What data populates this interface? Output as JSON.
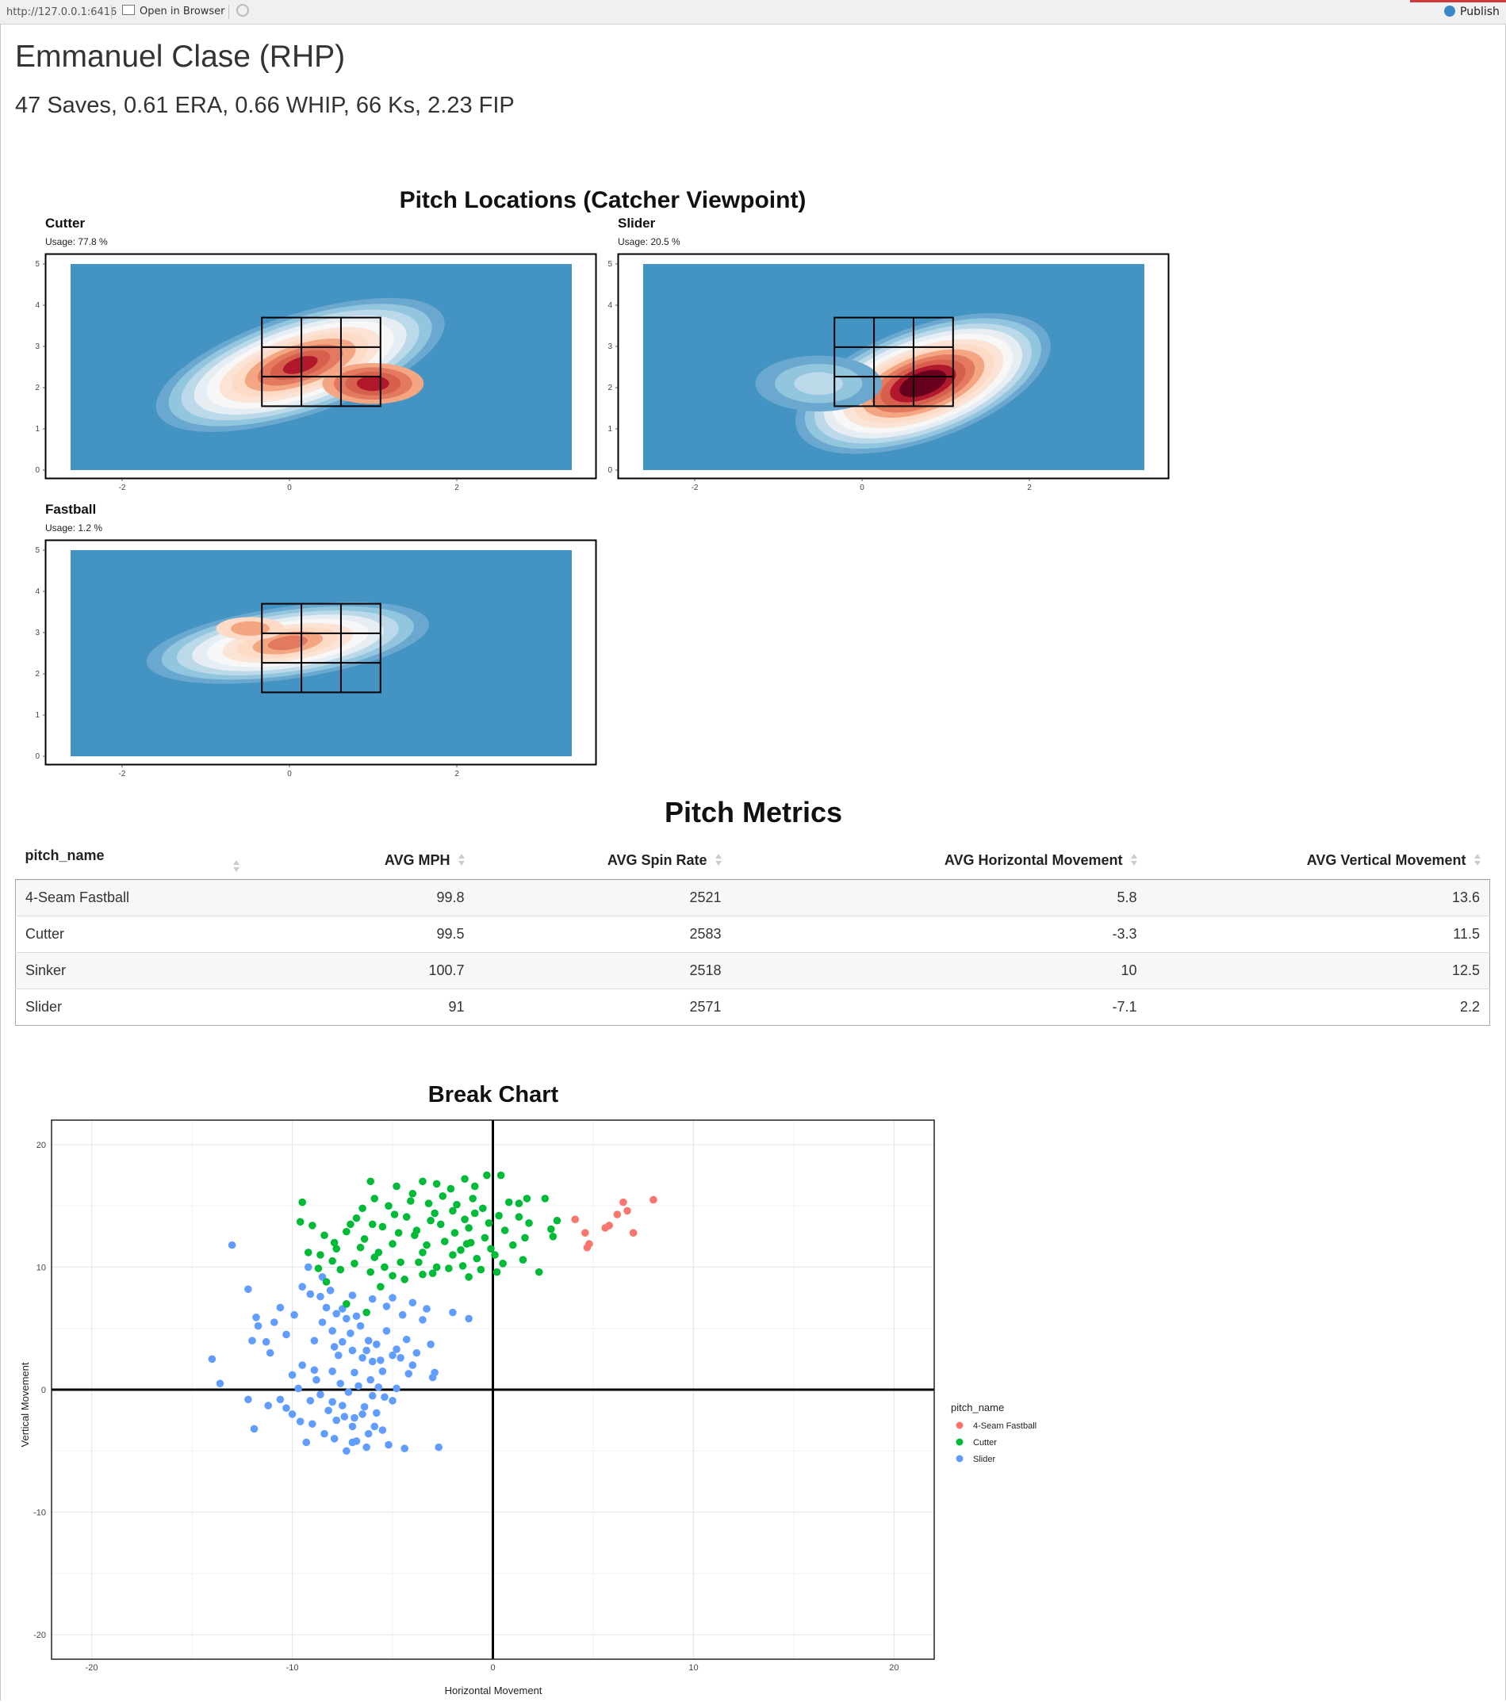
{
  "topbar": {
    "url": "http://127.0.0.1:6416",
    "open_in_browser": "Open in Browser",
    "publish": "Publish"
  },
  "header": {
    "title": "Emmanuel Clase (RHP)",
    "stats": "47 Saves, 0.61 ERA, 0.66 WHIP, 66 Ks, 2.23 FIP"
  },
  "locations": {
    "title": "Pitch Locations (Catcher Viewpoint)",
    "panels": [
      {
        "name": "Cutter",
        "usage": "Usage: 77.8 %"
      },
      {
        "name": "Slider",
        "usage": "Usage: 20.5 %"
      },
      {
        "name": "Fastball",
        "usage": "Usage: 1.2 %"
      }
    ],
    "x_ticks": [
      "-2",
      "0",
      "2"
    ],
    "y_ticks": [
      "0",
      "1",
      "2",
      "3",
      "4",
      "5"
    ],
    "fill_low": "#4393c3",
    "fill_high": "#67001f"
  },
  "metrics": {
    "title": "Pitch Metrics",
    "columns": [
      "pitch_name",
      "AVG MPH",
      "AVG Spin Rate",
      "AVG Horizontal Movement",
      "AVG Vertical Movement"
    ],
    "rows": [
      [
        "4-Seam Fastball",
        "99.8",
        "2521",
        "5.8",
        "13.6"
      ],
      [
        "Cutter",
        "99.5",
        "2583",
        "-3.3",
        "11.5"
      ],
      [
        "Sinker",
        "100.7",
        "2518",
        "10",
        "12.5"
      ],
      [
        "Slider",
        "91",
        "2571",
        "-7.1",
        "2.2"
      ]
    ]
  },
  "chart_data": {
    "type": "scatter",
    "title": "Break Chart",
    "xlabel": "Horizontal Movement",
    "ylabel": "Vertical Movement",
    "xlim": [
      -22,
      22
    ],
    "ylim": [
      -22,
      22
    ],
    "x_ticks": [
      -20,
      -10,
      0,
      10,
      20
    ],
    "y_ticks": [
      -20,
      -10,
      0,
      10,
      20
    ],
    "grid": true,
    "legend_title": "pitch_name",
    "legend_position": "right",
    "series": [
      {
        "name": "4-Seam Fastball",
        "color": "#f8766d",
        "points": [
          [
            4.1,
            13.9
          ],
          [
            4.6,
            12.8
          ],
          [
            4.8,
            11.9
          ],
          [
            4.7,
            11.6
          ],
          [
            5.6,
            13.2
          ],
          [
            5.8,
            13.4
          ],
          [
            6.2,
            14.3
          ],
          [
            6.5,
            15.3
          ],
          [
            6.7,
            14.6
          ],
          [
            7.0,
            12.8
          ],
          [
            8.0,
            15.5
          ]
        ]
      },
      {
        "name": "Cutter",
        "color": "#00ba38",
        "points": [
          [
            -9.5,
            15.3
          ],
          [
            -9.6,
            13.7
          ],
          [
            -6.1,
            17.0
          ],
          [
            -5.9,
            15.6
          ],
          [
            -4.8,
            16.6
          ],
          [
            -4.0,
            16.0
          ],
          [
            -3.5,
            17.0
          ],
          [
            -2.8,
            16.8
          ],
          [
            -2.1,
            16.4
          ],
          [
            -1.4,
            17.2
          ],
          [
            -0.9,
            16.6
          ],
          [
            -0.3,
            17.5
          ],
          [
            0.4,
            17.5
          ],
          [
            0.8,
            15.3
          ],
          [
            1.3,
            15.2
          ],
          [
            1.7,
            15.6
          ],
          [
            2.6,
            15.6
          ],
          [
            3.2,
            13.8
          ],
          [
            2.9,
            13.1
          ],
          [
            3.0,
            12.5
          ],
          [
            1.8,
            13.6
          ],
          [
            1.6,
            12.4
          ],
          [
            1.3,
            14.1
          ],
          [
            2.3,
            9.6
          ],
          [
            0.2,
            9.6
          ],
          [
            -1.2,
            9.2
          ],
          [
            -7.3,
            7.0
          ],
          [
            -6.3,
            6.3
          ],
          [
            -3.5,
            9.4
          ],
          [
            -5.6,
            8.4
          ],
          [
            -8.3,
            8.8
          ],
          [
            -8.7,
            9.9
          ],
          [
            -9.2,
            11.2
          ],
          [
            -9.0,
            13.4
          ],
          [
            -8.4,
            12.6
          ],
          [
            -7.8,
            11.5
          ],
          [
            -7.3,
            12.9
          ],
          [
            -6.8,
            14.0
          ],
          [
            -6.4,
            12.3
          ],
          [
            -5.9,
            10.8
          ],
          [
            -5.5,
            13.3
          ],
          [
            -5.0,
            11.9
          ],
          [
            -4.6,
            10.4
          ],
          [
            -4.3,
            14.1
          ],
          [
            -3.9,
            12.6
          ],
          [
            -3.5,
            11.2
          ],
          [
            -3.1,
            13.8
          ],
          [
            -2.8,
            10.0
          ],
          [
            -2.4,
            12.1
          ],
          [
            -2.0,
            14.6
          ],
          [
            -1.6,
            11.4
          ],
          [
            -1.2,
            13.2
          ],
          [
            -0.8,
            10.7
          ],
          [
            -0.4,
            12.4
          ],
          [
            0.1,
            11.0
          ],
          [
            0.6,
            13.0
          ],
          [
            1.0,
            11.8
          ],
          [
            -5.2,
            15.0
          ],
          [
            -4.1,
            15.4
          ],
          [
            -3.2,
            15.2
          ],
          [
            -2.5,
            15.8
          ],
          [
            -1.8,
            15.1
          ],
          [
            -1.0,
            15.6
          ],
          [
            -0.5,
            14.8
          ],
          [
            -6.9,
            10.3
          ],
          [
            -7.6,
            9.8
          ],
          [
            -6.1,
            9.6
          ],
          [
            -5.0,
            9.3
          ],
          [
            -4.4,
            9.0
          ],
          [
            -3.0,
            9.5
          ],
          [
            -2.2,
            9.9
          ],
          [
            -1.5,
            10.1
          ],
          [
            -0.6,
            9.8
          ],
          [
            0.5,
            10.3
          ],
          [
            1.5,
            10.6
          ],
          [
            -8.0,
            10.5
          ],
          [
            -6.6,
            11.6
          ],
          [
            -3.8,
            13.0
          ],
          [
            -2.6,
            13.5
          ],
          [
            -1.9,
            12.8
          ],
          [
            -1.1,
            12.0
          ],
          [
            -0.2,
            13.6
          ],
          [
            0.3,
            14.2
          ],
          [
            -4.7,
            12.8
          ],
          [
            -5.7,
            11.2
          ],
          [
            -4.9,
            14.3
          ],
          [
            -3.3,
            11.8
          ],
          [
            -2.9,
            14.4
          ],
          [
            -1.4,
            13.9
          ],
          [
            -0.9,
            14.4
          ],
          [
            -6.0,
            13.5
          ],
          [
            -6.5,
            14.8
          ],
          [
            -7.1,
            13.5
          ],
          [
            -7.9,
            12.0
          ],
          [
            -8.6,
            11.0
          ],
          [
            -5.4,
            10.0
          ],
          [
            -3.7,
            10.4
          ],
          [
            -2.0,
            11.0
          ],
          [
            -1.3,
            11.9
          ],
          [
            -0.1,
            11.5
          ]
        ]
      },
      {
        "name": "Slider",
        "color": "#619cff",
        "points": [
          [
            -13.0,
            11.8
          ],
          [
            -12.2,
            8.2
          ],
          [
            -11.8,
            5.9
          ],
          [
            -11.7,
            5.2
          ],
          [
            -12.0,
            4.0
          ],
          [
            -11.3,
            3.9
          ],
          [
            -11.1,
            3.0
          ],
          [
            -14.0,
            2.5
          ],
          [
            -13.6,
            0.5
          ],
          [
            -12.2,
            -0.8
          ],
          [
            -11.2,
            -1.3
          ],
          [
            -11.9,
            -3.2
          ],
          [
            -10.6,
            -0.8
          ],
          [
            -10.3,
            -1.5
          ],
          [
            -10.0,
            -2.0
          ],
          [
            -9.6,
            -2.6
          ],
          [
            -9.3,
            -4.3
          ],
          [
            -10.3,
            4.5
          ],
          [
            -10.6,
            6.7
          ],
          [
            -9.5,
            8.4
          ],
          [
            -9.1,
            7.8
          ],
          [
            -9.2,
            10.0
          ],
          [
            -8.5,
            9.2
          ],
          [
            -8.6,
            7.6
          ],
          [
            -8.3,
            6.7
          ],
          [
            -8.5,
            5.5
          ],
          [
            -8.0,
            4.8
          ],
          [
            -7.9,
            3.5
          ],
          [
            -7.5,
            6.6
          ],
          [
            -7.3,
            5.8
          ],
          [
            -7.1,
            4.6
          ],
          [
            -7.0,
            3.2
          ],
          [
            -6.6,
            5.2
          ],
          [
            -6.5,
            2.6
          ],
          [
            -6.2,
            4.0
          ],
          [
            -6.0,
            2.3
          ],
          [
            -5.8,
            3.7
          ],
          [
            -5.5,
            1.5
          ],
          [
            -5.3,
            4.8
          ],
          [
            -5.0,
            2.8
          ],
          [
            -4.8,
            3.3
          ],
          [
            -4.5,
            6.1
          ],
          [
            -4.3,
            4.1
          ],
          [
            -4.0,
            2.0
          ],
          [
            -3.5,
            5.7
          ],
          [
            -3.0,
            1.0
          ],
          [
            -2.0,
            6.3
          ],
          [
            -1.2,
            5.8
          ],
          [
            -3.1,
            3.7
          ],
          [
            -3.8,
            3.0
          ],
          [
            -9.5,
            2.0
          ],
          [
            -10.0,
            1.2
          ],
          [
            -8.8,
            0.8
          ],
          [
            -8.6,
            -0.4
          ],
          [
            -8.2,
            -1.7
          ],
          [
            -7.8,
            -2.5
          ],
          [
            -7.5,
            -1.3
          ],
          [
            -7.2,
            -0.2
          ],
          [
            -7.0,
            -3.0
          ],
          [
            -6.8,
            -4.2
          ],
          [
            -7.3,
            -5.0
          ],
          [
            -6.5,
            -2.0
          ],
          [
            -6.2,
            -3.6
          ],
          [
            -6.0,
            -0.5
          ],
          [
            -5.8,
            -1.9
          ],
          [
            -5.5,
            -3.3
          ],
          [
            -6.3,
            -4.7
          ],
          [
            -5.2,
            -4.5
          ],
          [
            -5.0,
            -0.9
          ],
          [
            -4.4,
            -4.8
          ],
          [
            -2.7,
            -4.7
          ],
          [
            -8.0,
            1.5
          ],
          [
            -7.7,
            2.8
          ],
          [
            -6.9,
            1.4
          ],
          [
            -6.7,
            0.3
          ],
          [
            -6.1,
            0.8
          ],
          [
            -5.7,
            0.2
          ],
          [
            -5.4,
            -0.6
          ],
          [
            -4.8,
            0.1
          ],
          [
            -4.2,
            1.3
          ],
          [
            -7.6,
            0.5
          ],
          [
            -8.9,
            1.6
          ],
          [
            -9.7,
            0.1
          ],
          [
            -9.0,
            -2.8
          ],
          [
            -8.4,
            -3.6
          ],
          [
            -7.4,
            -2.2
          ],
          [
            -6.4,
            -1.4
          ],
          [
            -8.1,
            8.1
          ],
          [
            -7.0,
            7.7
          ],
          [
            -6.0,
            7.4
          ],
          [
            -5.0,
            7.5
          ],
          [
            -4.0,
            7.1
          ],
          [
            -3.3,
            6.6
          ],
          [
            -5.3,
            6.8
          ],
          [
            -6.8,
            6.0
          ],
          [
            -7.8,
            6.2
          ],
          [
            -9.9,
            6.1
          ],
          [
            -10.9,
            5.5
          ],
          [
            -8.9,
            4.0
          ],
          [
            -7.5,
            3.9
          ],
          [
            -6.3,
            3.2
          ],
          [
            -5.6,
            2.4
          ],
          [
            -4.6,
            2.6
          ],
          [
            -2.9,
            1.4
          ],
          [
            -9.1,
            -0.9
          ],
          [
            -8.0,
            -1.0
          ],
          [
            -6.9,
            -2.3
          ],
          [
            -5.9,
            -3.0
          ],
          [
            -7.9,
            -4.0
          ],
          [
            -7.0,
            -4.3
          ]
        ]
      }
    ]
  }
}
